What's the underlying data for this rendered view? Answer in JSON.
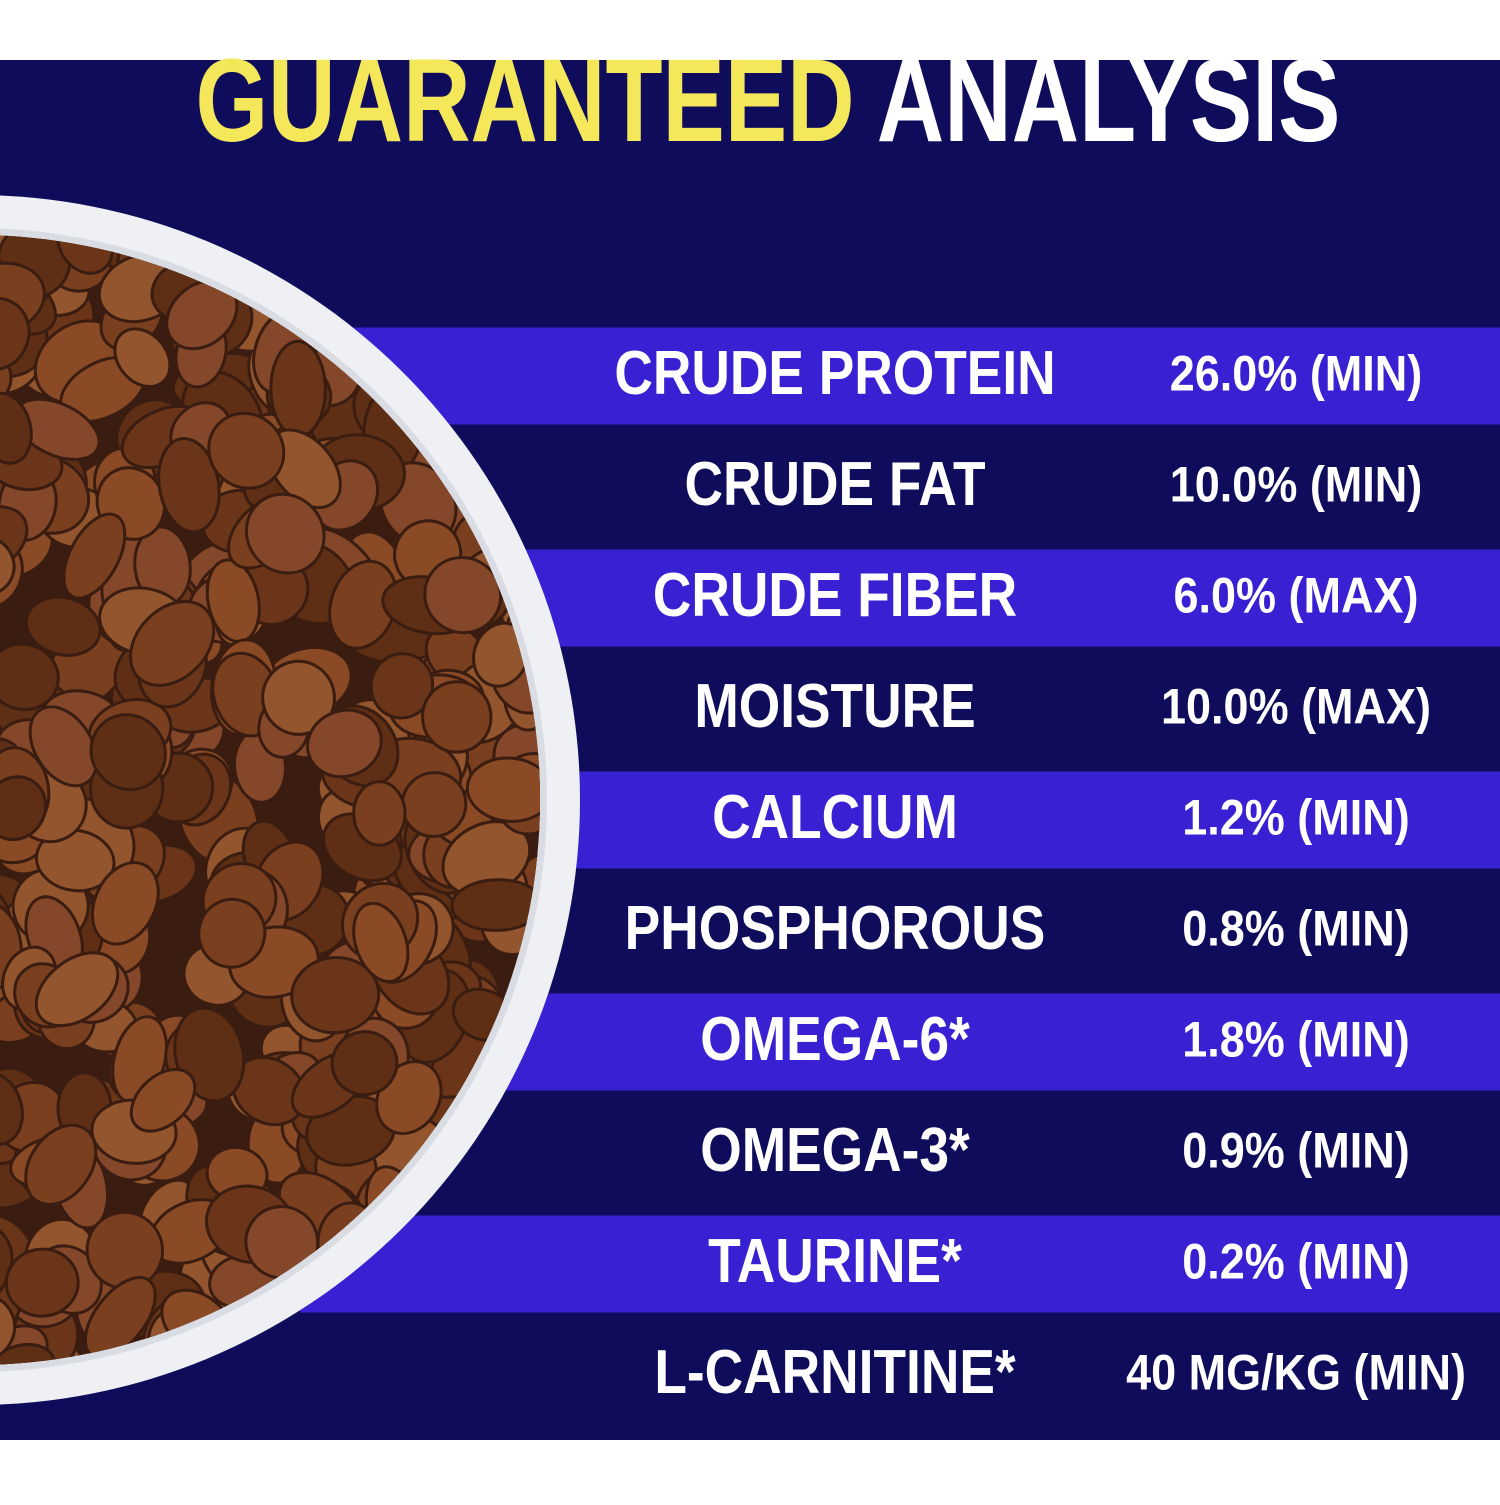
{
  "header": {
    "title_highlight": "GUARANTEED",
    "title_rest": "ANALYSIS"
  },
  "table": {
    "rows": [
      [
        "CRUDE PROTEIN",
        "26.0% (MIN)"
      ],
      [
        "CRUDE FAT",
        "10.0% (MIN)"
      ],
      [
        "CRUDE FIBER",
        "6.0% (MAX)"
      ],
      [
        "MOISTURE",
        "10.0% (MAX)"
      ],
      [
        "CALCIUM",
        "1.2% (MIN)"
      ],
      [
        "PHOSPHOROUS",
        "0.8% (MIN)"
      ],
      [
        "OMEGA-6*",
        "1.8% (MIN)"
      ],
      [
        "OMEGA-3*",
        "0.9% (MIN)"
      ],
      [
        "TAURINE*",
        "0.2% (MIN)"
      ],
      [
        "L-CARNITINE*",
        "40 MG/KG (MIN)"
      ]
    ]
  }
}
